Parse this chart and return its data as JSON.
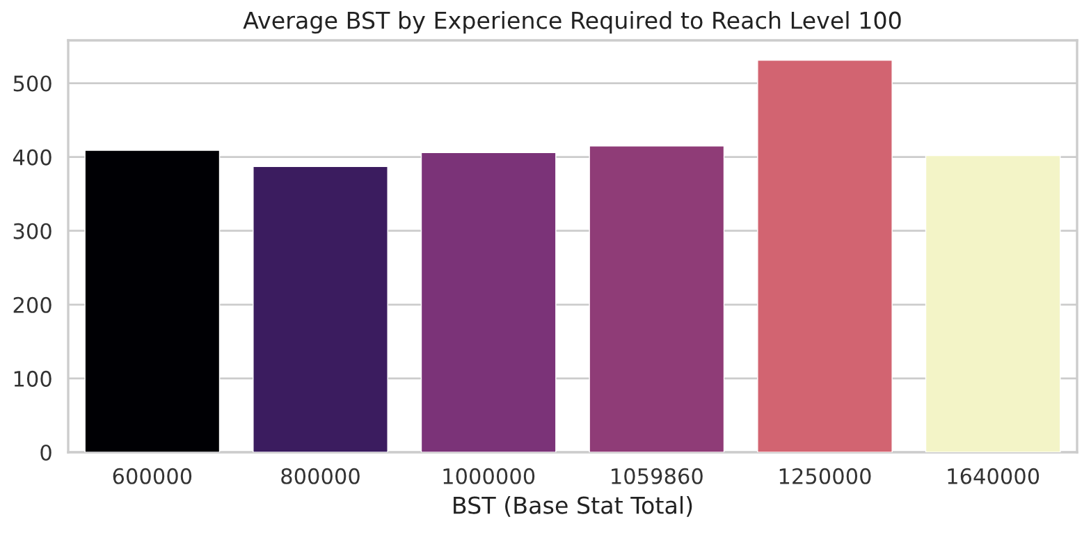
{
  "chart_data": {
    "type": "bar",
    "title": "Average BST by Experience Required to Reach Level 100",
    "xlabel": "BST (Base Stat Total)",
    "categories": [
      "600000",
      "800000",
      "1000000",
      "1059860",
      "1250000",
      "1640000"
    ],
    "values": [
      409,
      387,
      406,
      415,
      531,
      402
    ],
    "colors": [
      "#000004",
      "#3b1c5f",
      "#7b3378",
      "#8f3c77",
      "#d26471",
      "#f3f4c7"
    ],
    "ylim": [
      0,
      558
    ],
    "yticks": [
      0,
      100,
      200,
      300,
      400,
      500
    ],
    "grid": "y"
  }
}
